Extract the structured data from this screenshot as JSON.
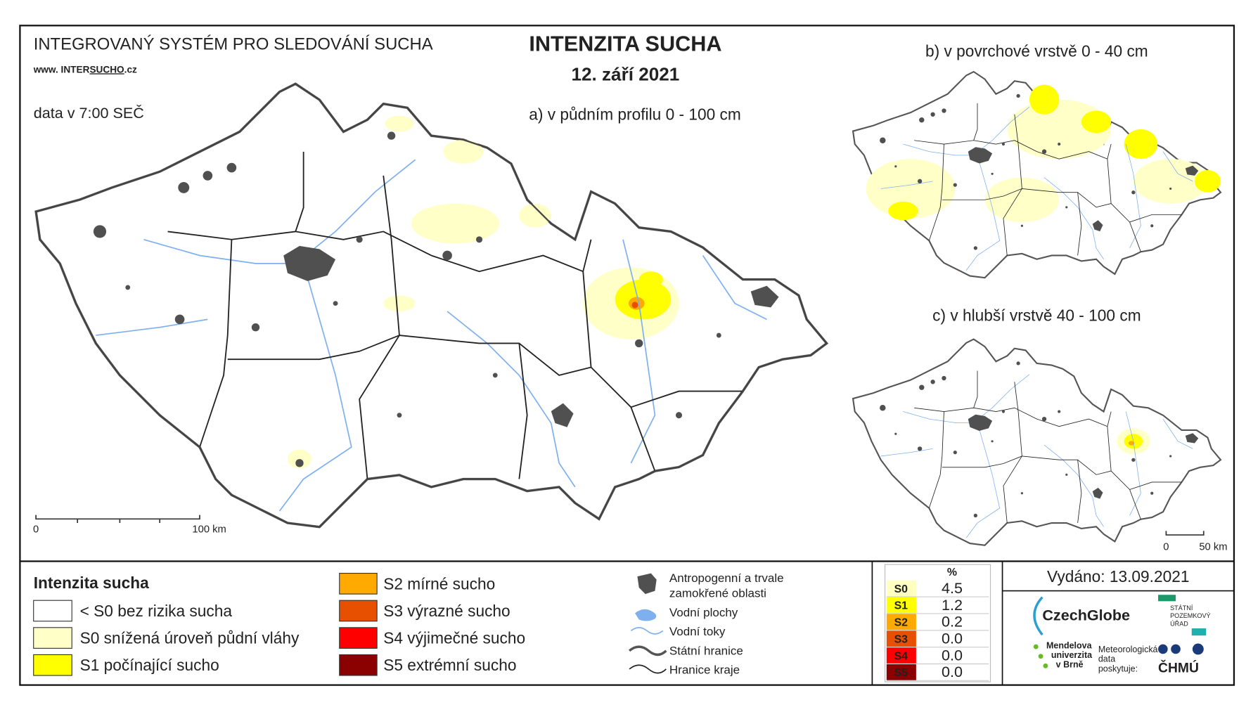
{
  "header": {
    "system_title": "INTEGROVANÝ SYSTÉM PRO SLEDOVÁNÍ SUCHA",
    "url_prefix": "www. INTER",
    "url_highlight": "SUCHO",
    "url_suffix": ".cz",
    "title": "INTENZITA SUCHA",
    "date": "12. září 2021",
    "data_time": "data v 7:00 SEČ"
  },
  "maps": {
    "a": {
      "label": "a) v půdním profilu 0 - 100 cm",
      "scale_start": "0",
      "scale_end": "100 km"
    },
    "b": {
      "label": "b) v povrchové vrstvě 0 - 40 cm"
    },
    "c": {
      "label": "c) v hlubší vrstvě 40 - 100 cm",
      "scale_start": "0",
      "scale_end": "50 km"
    }
  },
  "legend": {
    "title": "Intenzita sucha",
    "items": [
      {
        "label": "< S0 bez rizika sucha",
        "color": "#ffffff"
      },
      {
        "label": "S0 snížená úroveň půdní vláhy",
        "color": "#ffffc8"
      },
      {
        "label": "S1 počínající sucho",
        "color": "#ffff00"
      },
      {
        "label": "S2 mírné sucho",
        "color": "#ffaa00"
      },
      {
        "label": "S3 výrazné sucho",
        "color": "#e65000"
      },
      {
        "label": "S4 výjimečné sucho",
        "color": "#ff0000"
      },
      {
        "label": "S5 extrémní sucho",
        "color": "#8b0000"
      }
    ]
  },
  "symbols": {
    "anthropogenic_line1": "Antropogenní a trvale",
    "anthropogenic_line2": "zamokřené oblasti",
    "water_bodies": "Vodní plochy",
    "rivers": "Vodní toky",
    "state_border": "Státní hranice",
    "region_border": "Hranice kraje"
  },
  "stats": {
    "header": "%",
    "rows": [
      {
        "class": "S0",
        "percent": "4.5",
        "color": "#ffffc0"
      },
      {
        "class": "S1",
        "percent": "1.2",
        "color": "#ffff00"
      },
      {
        "class": "S2",
        "percent": "0.2",
        "color": "#ffaa00"
      },
      {
        "class": "S3",
        "percent": "0.0",
        "color": "#e65000"
      },
      {
        "class": "S4",
        "percent": "0.0",
        "color": "#ff0000"
      },
      {
        "class": "S5",
        "percent": "0.0",
        "color": "#8b0000"
      }
    ]
  },
  "issued": "Vydáno: 13.09.2021",
  "logos": {
    "czechglobe": "CzechGlobe",
    "spu_line1": "STÁTNÍ",
    "spu_line2": "POZEMKOVÝ",
    "spu_line3": "ÚŘAD",
    "mendelu_line1": "Mendelova",
    "mendelu_line2": "univerzita",
    "mendelu_line3": "v Brně",
    "chmu_note_line1": "Meteorologická",
    "chmu_note_line2": "data",
    "chmu_note_line3": "poskytuje:",
    "chmu": "ČHMÚ"
  }
}
